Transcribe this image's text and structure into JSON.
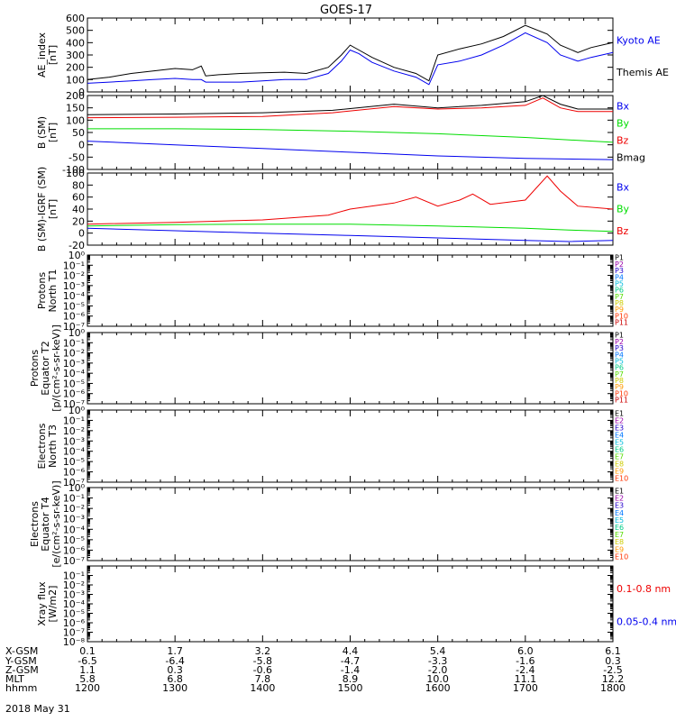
{
  "title": "GOES-17",
  "colors": {
    "black": "#000000",
    "blue": "#0000ee",
    "green": "#00dd00",
    "red": "#ee0000",
    "channels": [
      "#000000",
      "#9900aa",
      "#2200cc",
      "#0077ff",
      "#00bbdd",
      "#00cc88",
      "#55dd00",
      "#cccc00",
      "#ff9900",
      "#ff3300",
      "#cc0000"
    ]
  },
  "footer": {
    "row_labels": [
      "X-GSM",
      "Y-GSM",
      "Z-GSM",
      "MLT",
      "hhmm"
    ],
    "columns": [
      {
        "values": [
          "0.1",
          "-6.5",
          "1.1",
          "5.8",
          "1200"
        ]
      },
      {
        "values": [
          "1.7",
          "-6.4",
          "0.3",
          "6.8",
          "1300"
        ]
      },
      {
        "values": [
          "3.2",
          "-5.8",
          "-0.6",
          "7.8",
          "1400"
        ]
      },
      {
        "values": [
          "4.4",
          "-4.7",
          "-1.4",
          "8.9",
          "1500"
        ]
      },
      {
        "values": [
          "5.4",
          "-3.3",
          "-2.0",
          "10.0",
          "1600"
        ]
      },
      {
        "values": [
          "6.0",
          "-1.6",
          "-2.4",
          "11.1",
          "1700"
        ]
      },
      {
        "values": [
          "6.1",
          "0.3",
          "-2.5",
          "12.2",
          "1800"
        ]
      }
    ],
    "date": "2018 May 31"
  },
  "chart_data": [
    {
      "type": "line",
      "ylabel": [
        "AE_index",
        "[nT]"
      ],
      "ylim": [
        0,
        600
      ],
      "yticks": [
        "0",
        "100",
        "200",
        "300",
        "400",
        "500",
        "600"
      ],
      "x_hours": [
        12,
        18
      ],
      "legend": [
        {
          "name": "Kyoto AE",
          "color": "#0000ee"
        },
        {
          "name": "Themis AE",
          "color": "#000000"
        }
      ],
      "series": [
        {
          "name": "Themis AE",
          "color": "#000000",
          "x": [
            12.0,
            12.25,
            12.5,
            12.75,
            13.0,
            13.2,
            13.3,
            13.35,
            13.5,
            13.75,
            14.0,
            14.25,
            14.5,
            14.75,
            14.9,
            15.0,
            15.1,
            15.25,
            15.5,
            15.75,
            15.9,
            16.0,
            16.25,
            16.5,
            16.75,
            17.0,
            17.25,
            17.4,
            17.6,
            17.75,
            18.0
          ],
          "y": [
            100,
            120,
            150,
            170,
            190,
            180,
            210,
            130,
            140,
            150,
            155,
            160,
            150,
            200,
            300,
            380,
            340,
            280,
            200,
            150,
            90,
            300,
            350,
            390,
            450,
            540,
            470,
            380,
            320,
            360,
            400
          ]
        },
        {
          "name": "Kyoto AE",
          "color": "#0000ee",
          "x": [
            12.0,
            12.25,
            12.5,
            12.75,
            13.0,
            13.2,
            13.3,
            13.35,
            13.5,
            13.75,
            14.0,
            14.25,
            14.5,
            14.75,
            14.9,
            15.0,
            15.1,
            15.25,
            15.5,
            15.75,
            15.9,
            16.0,
            16.25,
            16.5,
            16.75,
            17.0,
            17.25,
            17.4,
            17.6,
            17.75,
            18.0
          ],
          "y": [
            70,
            80,
            90,
            100,
            110,
            100,
            100,
            80,
            80,
            80,
            90,
            100,
            100,
            150,
            250,
            340,
            310,
            240,
            170,
            120,
            60,
            220,
            250,
            300,
            380,
            480,
            400,
            300,
            250,
            280,
            320
          ]
        }
      ]
    },
    {
      "type": "line",
      "ylabel": [
        "B (SM)",
        "[nT]"
      ],
      "ylim": [
        -100,
        200
      ],
      "yticks": [
        "-100",
        "-50",
        "0",
        "50",
        "100",
        "150",
        "200"
      ],
      "x_hours": [
        12,
        18
      ],
      "legend": [
        {
          "name": "Bx",
          "color": "#0000ee"
        },
        {
          "name": "By",
          "color": "#00dd00"
        },
        {
          "name": "Bz",
          "color": "#ee0000"
        },
        {
          "name": "Bmag",
          "color": "#000000"
        }
      ],
      "series": [
        {
          "name": "Bmag",
          "color": "#000000",
          "x": [
            12.0,
            13.0,
            14.0,
            14.8,
            15.5,
            16.0,
            16.5,
            17.0,
            17.2,
            17.4,
            17.6,
            18.0
          ],
          "y": [
            122,
            125,
            130,
            140,
            165,
            150,
            160,
            175,
            200,
            165,
            145,
            145
          ]
        },
        {
          "name": "Bz",
          "color": "#ee0000",
          "x": [
            12.0,
            13.0,
            14.0,
            14.8,
            15.5,
            16.0,
            16.5,
            17.0,
            17.2,
            17.4,
            17.6,
            18.0
          ],
          "y": [
            110,
            112,
            115,
            130,
            155,
            145,
            150,
            160,
            190,
            150,
            135,
            135
          ]
        },
        {
          "name": "By",
          "color": "#00dd00",
          "x": [
            12.0,
            13.0,
            14.0,
            15.0,
            16.0,
            17.0,
            18.0
          ],
          "y": [
            65,
            65,
            62,
            55,
            45,
            30,
            10
          ]
        },
        {
          "name": "Bx",
          "color": "#0000ee",
          "x": [
            12.0,
            13.0,
            14.0,
            15.0,
            16.0,
            17.0,
            18.0
          ],
          "y": [
            15,
            0,
            -15,
            -30,
            -45,
            -55,
            -60
          ]
        }
      ]
    },
    {
      "type": "line",
      "ylabel": [
        "B (SM)-IGRF (SM)",
        "[nT]"
      ],
      "ylim": [
        -20,
        100
      ],
      "yticks": [
        "-20",
        "0",
        "20",
        "40",
        "60",
        "80",
        "100"
      ],
      "x_hours": [
        12,
        18
      ],
      "legend": [
        {
          "name": "Bx",
          "color": "#0000ee"
        },
        {
          "name": "By",
          "color": "#00dd00"
        },
        {
          "name": "Bz",
          "color": "#ee0000"
        }
      ],
      "series": [
        {
          "name": "Bz",
          "color": "#ee0000",
          "x": [
            12.0,
            13.0,
            14.0,
            14.75,
            15.0,
            15.5,
            15.75,
            16.0,
            16.25,
            16.4,
            16.6,
            17.0,
            17.25,
            17.4,
            17.6,
            18.0
          ],
          "y": [
            15,
            18,
            22,
            30,
            40,
            50,
            60,
            45,
            55,
            65,
            48,
            55,
            95,
            70,
            45,
            40
          ]
        },
        {
          "name": "By",
          "color": "#00dd00",
          "x": [
            12.0,
            13.0,
            14.0,
            15.0,
            16.0,
            17.0,
            17.5,
            18.0
          ],
          "y": [
            12,
            14,
            15,
            15,
            12,
            8,
            5,
            3
          ]
        },
        {
          "name": "Bx",
          "color": "#0000ee",
          "x": [
            12.0,
            13.0,
            14.0,
            15.0,
            16.0,
            17.0,
            17.5,
            18.0
          ],
          "y": [
            8,
            4,
            0,
            -4,
            -8,
            -12,
            -14,
            -12
          ]
        }
      ]
    },
    {
      "type": "line",
      "ylabel": [
        "Protons",
        "North T1"
      ],
      "ylim": [
        1e-07,
        1
      ],
      "log": true,
      "yticks": [
        "10⁰",
        "10⁻¹",
        "10⁻²",
        "10⁻³",
        "10⁻⁴",
        "10⁻⁵",
        "10⁻⁶",
        "10⁻⁷"
      ],
      "channels": [
        "P1",
        "P2",
        "P3",
        "P4",
        "P5",
        "P6",
        "P7",
        "P8",
        "P9",
        "P10",
        "P11"
      ],
      "series": []
    },
    {
      "type": "line",
      "ylabel": [
        "Protons",
        "Equator T2",
        "[p/(cm²-s-sr-keV)]"
      ],
      "ylim": [
        1e-07,
        1
      ],
      "log": true,
      "yticks": [
        "10⁰",
        "10⁻¹",
        "10⁻²",
        "10⁻³",
        "10⁻⁴",
        "10⁻⁵",
        "10⁻⁶",
        "10⁻⁷"
      ],
      "channels": [
        "P1",
        "P2",
        "P3",
        "P4",
        "P5",
        "P6",
        "P7",
        "P8",
        "P9",
        "P10",
        "P11"
      ],
      "series": []
    },
    {
      "type": "line",
      "ylabel": [
        "Electrons",
        "North T3"
      ],
      "ylim": [
        1e-07,
        1
      ],
      "log": true,
      "yticks": [
        "10⁰",
        "10⁻¹",
        "10⁻²",
        "10⁻³",
        "10⁻⁴",
        "10⁻⁵",
        "10⁻⁶",
        "10⁻⁷"
      ],
      "channels": [
        "E1",
        "E2",
        "E3",
        "E4",
        "E5",
        "E6",
        "E7",
        "E8",
        "E9",
        "E10"
      ],
      "series": []
    },
    {
      "type": "line",
      "ylabel": [
        "Electrons",
        "Equator T4",
        "[e/(cm²-s-sr-keV)]"
      ],
      "ylim": [
        1e-07,
        1
      ],
      "log": true,
      "yticks": [
        "10⁰",
        "10⁻¹",
        "10⁻²",
        "10⁻³",
        "10⁻⁴",
        "10⁻⁵",
        "10⁻⁶",
        "10⁻⁷"
      ],
      "channels": [
        "E1",
        "E2",
        "E3",
        "E4",
        "E5",
        "E6",
        "E7",
        "E8",
        "E9",
        "E10"
      ],
      "series": []
    },
    {
      "type": "line",
      "ylabel": [
        "Xray flux",
        "[W/m2]"
      ],
      "ylim": [
        1e-08,
        1
      ],
      "log": true,
      "yticks": [
        "10⁻¹",
        "10⁻²",
        "10⁻³",
        "10⁻⁴",
        "10⁻⁵",
        "10⁻⁶",
        "10⁻⁷",
        "10⁻⁸"
      ],
      "legend": [
        {
          "name": "0.1-0.8 nm",
          "color": "#ee0000"
        },
        {
          "name": "0.05-0.4 nm",
          "color": "#0000ee"
        }
      ],
      "series": []
    }
  ]
}
